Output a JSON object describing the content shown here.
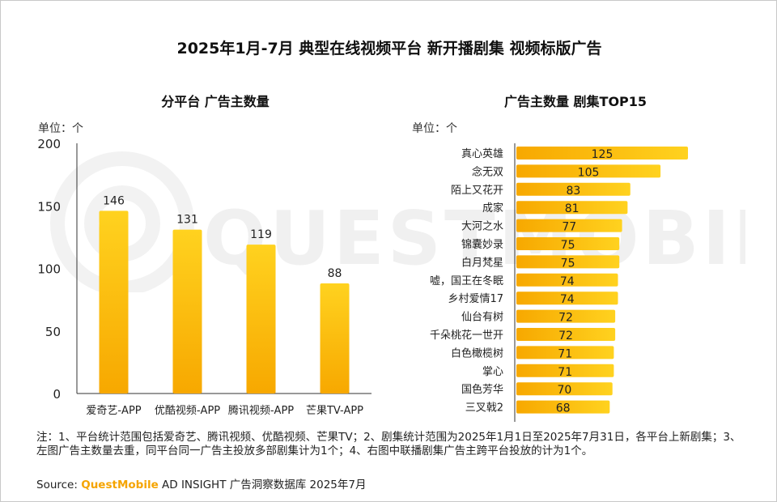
{
  "title": "2025年1月-7月 典型在线视频平台 新开播剧集 视频标版广告",
  "watermark": "QUESTMOBILE",
  "colors": {
    "bar_top": "#ffd21f",
    "bar_bottom": "#f7a800",
    "axis": "#333333"
  },
  "notes": "注：1、平台统计范围包括爱奇艺、腾讯视频、优酷视频、芒果TV；2、剧集统计范围为2025年1月1日至2025年7月31日，各平台上新剧集；3、左图广告主数量去重，同平台同一广告主投放多部剧集计为1个；4、右图中联播剧集广告主跨平台投放的计为1个。",
  "source": {
    "label": "Source:",
    "brand": "QuestMobile",
    "rest": "AD INSIGHT 广告洞察数据库 2025年7月"
  },
  "chart_data": [
    {
      "type": "bar",
      "title": "分平台 广告主数量",
      "unit": "单位：个",
      "categories": [
        "爱奇艺-APP",
        "优酷视频-APP",
        "腾讯视频-APP",
        "芒果TV-APP"
      ],
      "values": [
        146,
        131,
        119,
        88
      ],
      "ylim": [
        0,
        200
      ],
      "yticks": [
        0,
        50,
        100,
        150,
        200
      ],
      "grid": false
    },
    {
      "type": "bar",
      "orientation": "horizontal",
      "title": "广告主数量 剧集TOP15",
      "unit": "单位：个",
      "categories": [
        "真心英雄",
        "念无双",
        "陌上又花开",
        "成家",
        "大河之水",
        "锦囊妙录",
        "白月梵星",
        "嘘，国王在冬眠",
        "乡村爱情17",
        "仙台有树",
        "千朵桃花一世开",
        "白色橄榄树",
        "掌心",
        "国色芳华",
        "三叉戟2"
      ],
      "values": [
        125,
        105,
        83,
        81,
        77,
        75,
        75,
        74,
        74,
        72,
        72,
        71,
        71,
        70,
        68
      ],
      "xlim": [
        0,
        125
      ]
    }
  ]
}
